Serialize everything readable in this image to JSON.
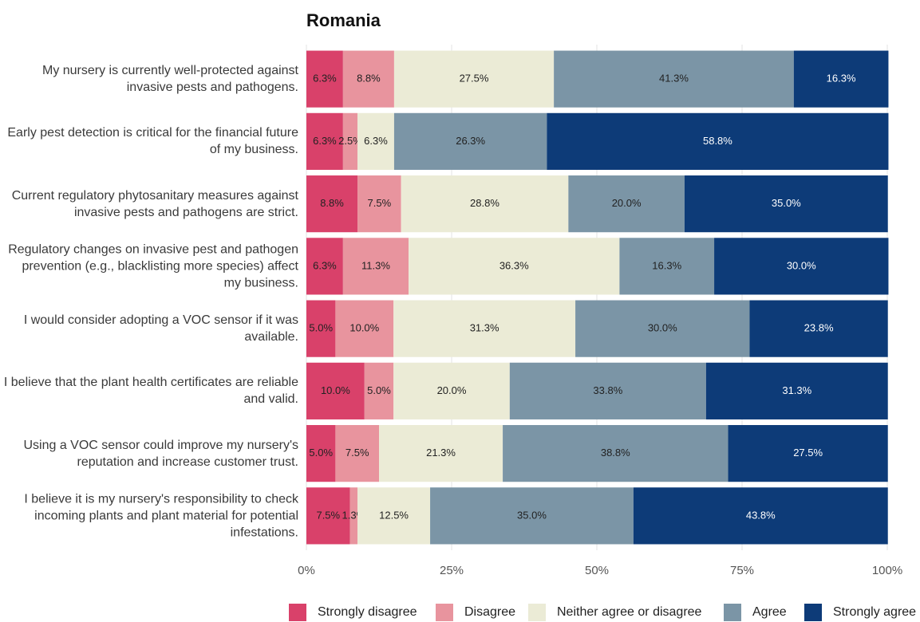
{
  "chart_data": {
    "type": "stacked_barh",
    "title": "Romania",
    "categories": [
      "My nursery is currently well-protected against invasive pests and pathogens.",
      "Early pest detection is critical for the financial future of my business.",
      "Current regulatory phytosanitary measures against invasive pests and pathogens are strict.",
      "Regulatory changes on invasive pest and pathogen prevention (e.g., blacklisting more species) affect my business.",
      "I would consider adopting a VOC sensor if it was available.",
      "I believe that the plant health certificates are reliable and valid.",
      "Using a VOC sensor could improve my nursery's reputation and increase customer trust.",
      "I believe it is my nursery's responsibility to check incoming plants and plant material for potential infestations."
    ],
    "series": [
      {
        "name": "Strongly disagree",
        "color": "#d9416a",
        "values": [
          6.3,
          6.3,
          8.8,
          6.3,
          5.0,
          10.0,
          5.0,
          7.5
        ],
        "value_labels": [
          "6.3%",
          "6.3%",
          "8.8%",
          "6.3%",
          "5.0%",
          "10.0%",
          "5.0%",
          "7.5%"
        ]
      },
      {
        "name": "Disagree",
        "color": "#e8949e",
        "values": [
          8.8,
          2.5,
          7.5,
          11.3,
          10.0,
          5.0,
          7.5,
          1.3
        ],
        "value_labels": [
          "8.8%",
          "2.5%",
          "7.5%",
          "11.3%",
          "10.0%",
          "5.0%",
          "7.5%",
          "1.3%"
        ]
      },
      {
        "name": "Neither agree or disagree",
        "color": "#ebebd6",
        "values": [
          27.5,
          6.3,
          28.8,
          36.3,
          31.3,
          20.0,
          21.3,
          12.5
        ],
        "value_labels": [
          "27.5%",
          "6.3%",
          "28.8%",
          "36.3%",
          "31.3%",
          "20.0%",
          "21.3%",
          "12.5%"
        ]
      },
      {
        "name": "Agree",
        "color": "#7b95a6",
        "values": [
          41.3,
          26.3,
          20.0,
          16.3,
          30.0,
          33.8,
          38.8,
          35.0
        ],
        "value_labels": [
          "41.3%",
          "26.3%",
          "20.0%",
          "16.3%",
          "30.0%",
          "33.8%",
          "38.8%",
          "35.0%"
        ]
      },
      {
        "name": "Strongly agree",
        "color": "#0d3b78",
        "values": [
          16.3,
          58.8,
          35.0,
          30.0,
          23.8,
          31.3,
          27.5,
          43.8
        ],
        "value_labels": [
          "16.3%",
          "58.8%",
          "35.0%",
          "30.0%",
          "23.8%",
          "31.3%",
          "27.5%",
          "43.8%"
        ]
      }
    ],
    "xlim": [
      0,
      100
    ],
    "xticks": [
      {
        "value": 0,
        "label": "0%"
      },
      {
        "value": 25,
        "label": "25%"
      },
      {
        "value": 50,
        "label": "50%"
      },
      {
        "value": 75,
        "label": "75%"
      },
      {
        "value": 100,
        "label": "100%"
      }
    ],
    "grid": true,
    "legend": "bottom"
  }
}
